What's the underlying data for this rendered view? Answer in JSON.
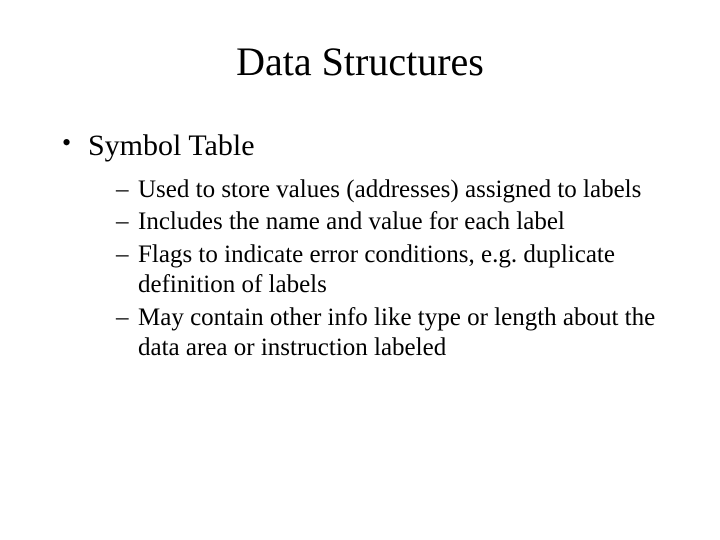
{
  "slide": {
    "title": "Data Structures",
    "title_fontsize": 40,
    "background_color": "#ffffff",
    "text_color": "#000000",
    "font_family": "Times New Roman",
    "bullets": {
      "level1": [
        {
          "text": "Symbol Table",
          "fontsize": 30,
          "marker": "•",
          "children": [
            {
              "text": "Used to store values (addresses) assigned to labels",
              "fontsize": 25,
              "marker": "–"
            },
            {
              "text": "Includes the name and value for each label",
              "fontsize": 25,
              "marker": "–"
            },
            {
              "text": "Flags to indicate error conditions, e.g. duplicate definition of labels",
              "fontsize": 25,
              "marker": "–"
            },
            {
              "text": "May contain other info like type or length about the data area or instruction labeled",
              "fontsize": 25,
              "marker": "–"
            }
          ]
        }
      ]
    }
  }
}
